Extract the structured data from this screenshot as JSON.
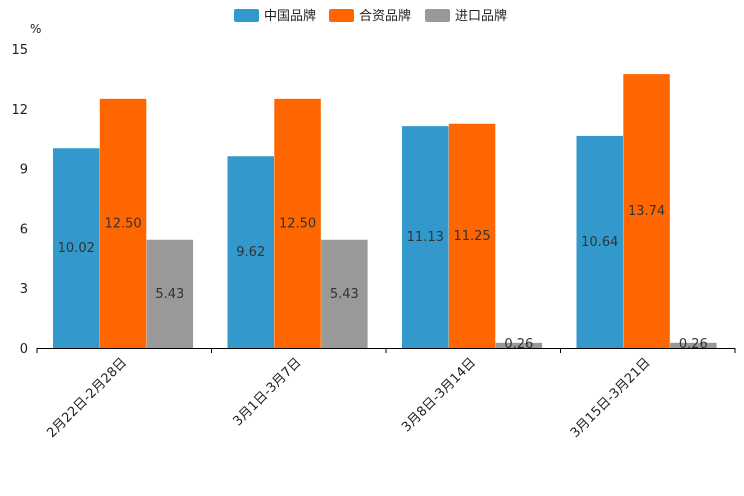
{
  "chart_data": {
    "type": "bar",
    "unit": "%",
    "categories": [
      "2月22日-2月28日",
      "3月1日-3月7日",
      "3月8日-3月14日",
      "3月15日-3月21日"
    ],
    "series": [
      {
        "name": "中国品牌",
        "color": "#3399cc",
        "values": [
          10.02,
          9.62,
          11.13,
          10.64
        ],
        "labels": [
          "10.02",
          "9.62",
          "11.13",
          "10.64"
        ]
      },
      {
        "name": "合资品牌",
        "color": "#ff6600",
        "values": [
          12.5,
          12.5,
          11.25,
          13.74
        ],
        "labels": [
          "12.50",
          "12.50",
          "11.25",
          "13.74"
        ]
      },
      {
        "name": "进口品牌",
        "color": "#999999",
        "values": [
          5.43,
          5.43,
          0.26,
          0.26
        ],
        "labels": [
          "5.43",
          "5.43",
          "0.26",
          "0.26"
        ]
      }
    ],
    "ylim": [
      0,
      15
    ],
    "yticks": [
      0,
      3,
      6,
      9,
      12,
      15
    ],
    "ytick_labels": [
      "0",
      "3",
      "6",
      "9",
      "12",
      "15"
    ],
    "legend_position": "top-center",
    "xlabel": "",
    "ylabel": "%"
  }
}
